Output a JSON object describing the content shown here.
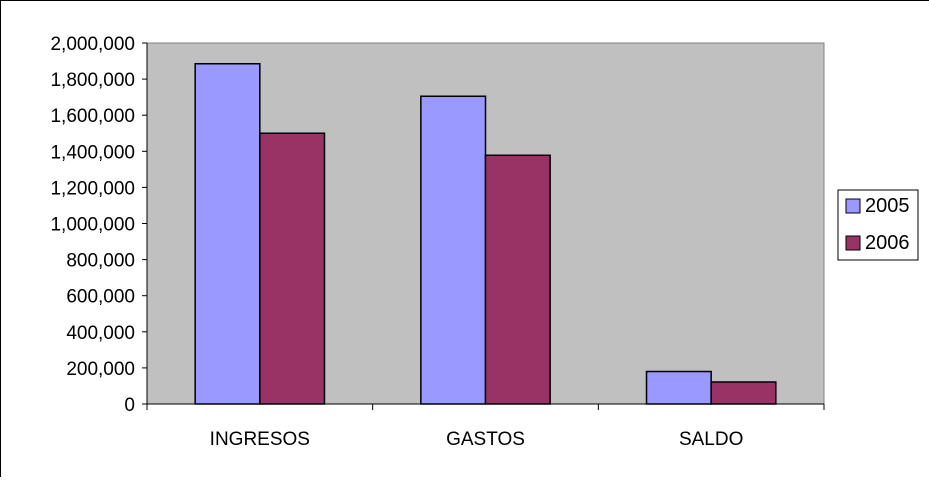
{
  "chart_data": {
    "type": "bar",
    "categories": [
      "INGRESOS",
      "GASTOS",
      "SALDO"
    ],
    "series": [
      {
        "name": "2005",
        "values": [
          1885000,
          1705000,
          180000
        ],
        "color": "#9999FF"
      },
      {
        "name": "2006",
        "values": [
          1500000,
          1378000,
          122000
        ],
        "color": "#993366"
      }
    ],
    "ylim": [
      0,
      2000000
    ],
    "yticks": [
      "0",
      "200,000",
      "400,000",
      "600,000",
      "800,000",
      "1,000,000",
      "1,200,000",
      "1,400,000",
      "1,600,000",
      "1,800,000",
      "2,000,000"
    ],
    "ytick_step": 200000,
    "title": "",
    "xlabel": "",
    "ylabel": "",
    "plot_background": "#C0C0C0",
    "legend_position": "right",
    "grid": false
  }
}
